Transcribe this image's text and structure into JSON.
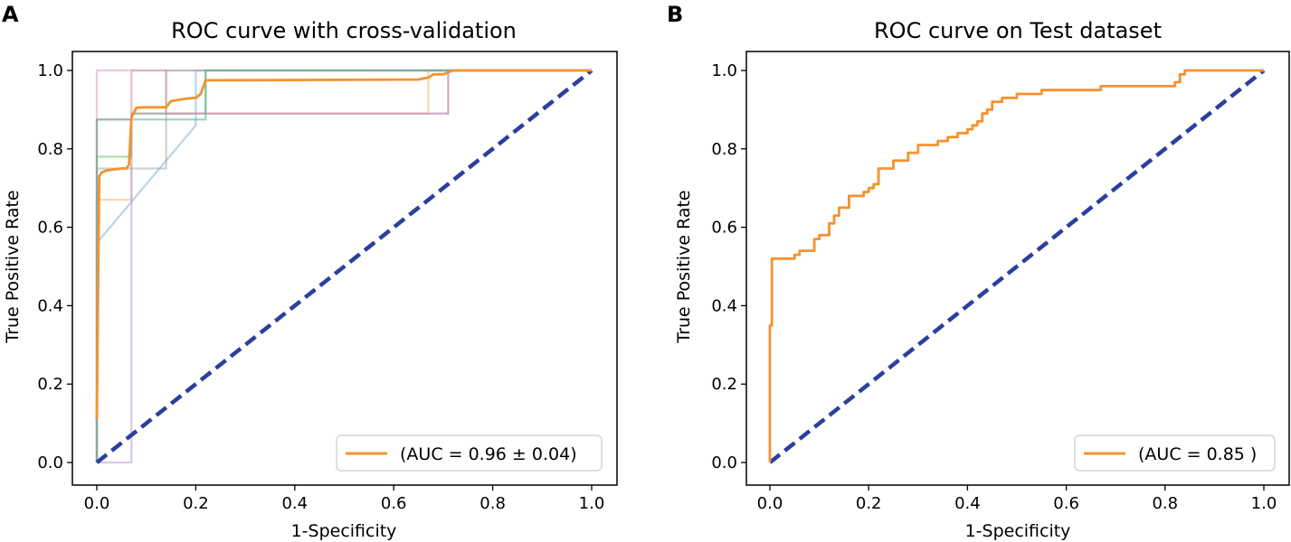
{
  "chart_data": [
    {
      "type": "line",
      "panel_label": "A",
      "title": "ROC curve with cross-validation",
      "xlabel": "1-Specificity",
      "ylabel": "True Positive Rate",
      "xlim": [
        0,
        1
      ],
      "ylim": [
        0,
        1
      ],
      "xticks": [
        "0.0",
        "0.2",
        "0.4",
        "0.6",
        "0.8",
        "1.0"
      ],
      "yticks": [
        "0.0",
        "0.2",
        "0.4",
        "0.6",
        "0.8",
        "1.0"
      ],
      "legend": {
        "label": "(AUC = 0.96 ± 0.04)",
        "placement": "lower-right"
      },
      "chance_line": {
        "name": "chance",
        "color": "#2b3f9e",
        "x": [
          0,
          1
        ],
        "y": [
          0,
          1
        ]
      },
      "series": [
        {
          "name": "fold-1",
          "role": "fold",
          "color": "#7bb3d6",
          "x": [
            0,
            0,
            0.2,
            0.2,
            1
          ],
          "y": [
            0,
            0.56,
            0.86,
            1,
            1
          ]
        },
        {
          "name": "fold-2",
          "role": "fold",
          "color": "#f5b36b",
          "x": [
            0,
            0,
            0.07,
            0.07,
            0.67,
            0.67,
            1
          ],
          "y": [
            0,
            0.67,
            0.67,
            0.89,
            0.89,
            1,
            1
          ]
        },
        {
          "name": "fold-3",
          "role": "fold",
          "color": "#6cc46c",
          "x": [
            0,
            0,
            0.07,
            0.07,
            0.22,
            0.22,
            1
          ],
          "y": [
            0,
            0.78,
            0.78,
            0.89,
            0.89,
            1,
            1
          ]
        },
        {
          "name": "fold-4",
          "role": "fold",
          "color": "#e8878a",
          "x": [
            0,
            0,
            0.07,
            0.07,
            0.14,
            0.14,
            0.71,
            0.71,
            1
          ],
          "y": [
            0,
            0.875,
            0.875,
            1,
            1,
            0.89,
            0.89,
            1,
            1
          ]
        },
        {
          "name": "fold-5",
          "role": "fold",
          "color": "#b79ad6",
          "x": [
            0,
            0,
            0.07,
            0.07,
            0.71,
            0.71,
            1
          ],
          "y": [
            0,
            0,
            0,
            0.89,
            0.89,
            1,
            1
          ]
        },
        {
          "name": "fold-6",
          "role": "fold",
          "color": "#d7a3c9",
          "x": [
            0,
            0,
            0.07,
            0.07,
            0.14,
            0.14,
            1
          ],
          "y": [
            0,
            1,
            1,
            1,
            1,
            1,
            1
          ]
        },
        {
          "name": "fold-7",
          "role": "fold",
          "color": "#a9a9a9",
          "x": [
            0,
            0,
            0.07,
            0.07,
            0.14,
            0.14,
            1
          ],
          "y": [
            0,
            0.75,
            0.75,
            0.75,
            0.75,
            1,
            1
          ]
        },
        {
          "name": "fold-8",
          "role": "fold",
          "color": "#5aa89a",
          "x": [
            0,
            0,
            0.22,
            0.22,
            1
          ],
          "y": [
            0,
            0.875,
            0.875,
            1,
            1
          ]
        },
        {
          "name": "mean-roc",
          "role": "mean",
          "color": "#f5922f",
          "x": [
            0,
            0.005,
            0.01,
            0.02,
            0.05,
            0.06,
            0.065,
            0.07,
            0.08,
            0.1,
            0.14,
            0.15,
            0.18,
            0.2,
            0.21,
            0.22,
            0.5,
            0.65,
            0.67,
            0.68,
            0.7,
            0.72,
            0.8,
            0.9,
            1.0
          ],
          "y": [
            0.11,
            0.73,
            0.74,
            0.745,
            0.75,
            0.75,
            0.76,
            0.88,
            0.905,
            0.906,
            0.906,
            0.922,
            0.928,
            0.93,
            0.94,
            0.975,
            0.976,
            0.977,
            0.982,
            0.99,
            0.99,
            1.0,
            1.0,
            1.0,
            1.0
          ]
        }
      ]
    },
    {
      "type": "line",
      "panel_label": "B",
      "title": "ROC curve on Test dataset",
      "xlabel": "1-Specificity",
      "ylabel": "True Positive Rate",
      "xlim": [
        0,
        1
      ],
      "ylim": [
        0,
        1
      ],
      "xticks": [
        "0.0",
        "0.2",
        "0.4",
        "0.6",
        "0.8",
        "1.0"
      ],
      "yticks": [
        "0.0",
        "0.2",
        "0.4",
        "0.6",
        "0.8",
        "1.0"
      ],
      "legend": {
        "label": "(AUC = 0.85 )",
        "placement": "lower-right"
      },
      "chance_line": {
        "name": "chance",
        "color": "#2b3f9e",
        "x": [
          0,
          1
        ],
        "y": [
          0,
          1
        ]
      },
      "series": [
        {
          "name": "test-roc",
          "role": "mean",
          "color": "#f5922f",
          "x": [
            0,
            0,
            0.004,
            0.004,
            0.008,
            0.008,
            0.05,
            0.05,
            0.06,
            0.06,
            0.09,
            0.09,
            0.1,
            0.1,
            0.12,
            0.12,
            0.13,
            0.13,
            0.14,
            0.14,
            0.16,
            0.16,
            0.19,
            0.19,
            0.2,
            0.2,
            0.21,
            0.21,
            0.22,
            0.22,
            0.25,
            0.25,
            0.28,
            0.28,
            0.3,
            0.3,
            0.34,
            0.34,
            0.36,
            0.36,
            0.38,
            0.38,
            0.4,
            0.4,
            0.41,
            0.41,
            0.42,
            0.42,
            0.43,
            0.43,
            0.44,
            0.44,
            0.45,
            0.45,
            0.47,
            0.47,
            0.5,
            0.5,
            0.55,
            0.55,
            0.67,
            0.67,
            0.82,
            0.82,
            0.83,
            0.83,
            0.84,
            0.84,
            1.0
          ],
          "y": [
            0,
            0.35,
            0.35,
            0.52,
            0.52,
            0.52,
            0.52,
            0.53,
            0.53,
            0.54,
            0.54,
            0.57,
            0.57,
            0.58,
            0.58,
            0.61,
            0.61,
            0.63,
            0.63,
            0.65,
            0.65,
            0.68,
            0.68,
            0.69,
            0.69,
            0.7,
            0.7,
            0.71,
            0.71,
            0.75,
            0.75,
            0.77,
            0.77,
            0.79,
            0.79,
            0.81,
            0.81,
            0.82,
            0.82,
            0.83,
            0.83,
            0.84,
            0.84,
            0.85,
            0.85,
            0.86,
            0.86,
            0.87,
            0.87,
            0.89,
            0.89,
            0.9,
            0.9,
            0.92,
            0.92,
            0.93,
            0.93,
            0.94,
            0.94,
            0.95,
            0.95,
            0.96,
            0.96,
            0.97,
            0.97,
            0.99,
            0.99,
            1.0,
            1.0
          ]
        }
      ]
    }
  ]
}
